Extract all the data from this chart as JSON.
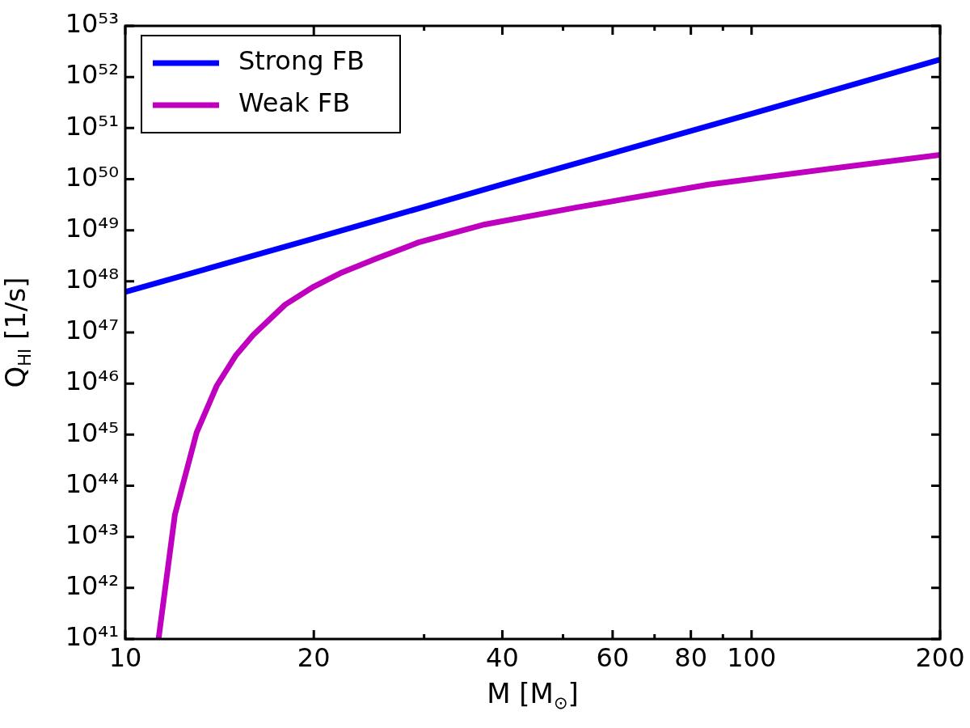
{
  "chart_data": {
    "type": "line",
    "xlabel": "M [M$_{⊙}$]",
    "ylabel": "Q$_{HI}$ [1/s]",
    "log": "xy",
    "grid": false,
    "legend": "top left",
    "marker": "none",
    "line_style": "solid",
    "xlim": [
      10,
      200
    ],
    "xticks": [
      10,
      20,
      {
        "value": 30,
        "label": null
      },
      40,
      {
        "value": 50,
        "label": null
      },
      60,
      {
        "value": 70,
        "label": null
      },
      80,
      {
        "value": 90,
        "label": null
      },
      100,
      200
    ],
    "ylim": [
      1e+41,
      1e+53
    ],
    "yticks": [
      {
        "value": 1e+41,
        "label": "10⁴¹"
      },
      {
        "value": 1e+42,
        "label": "10⁴²"
      },
      {
        "value": 1e+43,
        "label": "10⁴³"
      },
      {
        "value": 1e+44,
        "label": "10⁴⁴"
      },
      {
        "value": 1e+45,
        "label": "10⁴⁵"
      },
      {
        "value": 1e+46,
        "label": "10⁴⁶"
      },
      {
        "value": 1e+47,
        "label": "10⁴⁷"
      },
      {
        "value": 1e+48,
        "label": "10⁴⁸"
      },
      {
        "value": 1e+49,
        "label": "10⁴⁹"
      },
      {
        "value": 1e+50,
        "label": "10⁵⁰"
      },
      {
        "value": 1e+51,
        "label": "10⁵¹"
      },
      {
        "value": 1e+52,
        "label": "10⁵²"
      },
      {
        "value": 1e+53,
        "label": "10⁵³"
      }
    ],
    "series": [
      {
        "name": "Strong FB",
        "color": "#0000ff",
        "x": [
          10,
          20,
          40,
          100,
          200
        ],
        "values": [
          6.2e+47,
          6.9e+48,
          7.9e+49,
          1.9e+51,
          2.2e+52
        ]
      },
      {
        "name": "Weak FB",
        "color": "#bf00bf",
        "x": [
          11.3,
          12,
          13,
          14,
          15,
          16,
          17,
          18,
          20,
          22.2,
          25.2,
          29.4,
          37.5,
          52.6,
          85.3,
          138.7,
          200
        ],
        "values": [
          1e+41,
          2.7e+43,
          1.1e+45,
          9.1e+45,
          3.5e+46,
          8.9e+46,
          1.8e+47,
          3.5e+47,
          7.9e+47,
          1.5e+48,
          2.8e+48,
          5.8e+48,
          1.3e+49,
          2.8e+49,
          7.8e+49,
          1.7e+50,
          3e+50
        ]
      }
    ]
  }
}
